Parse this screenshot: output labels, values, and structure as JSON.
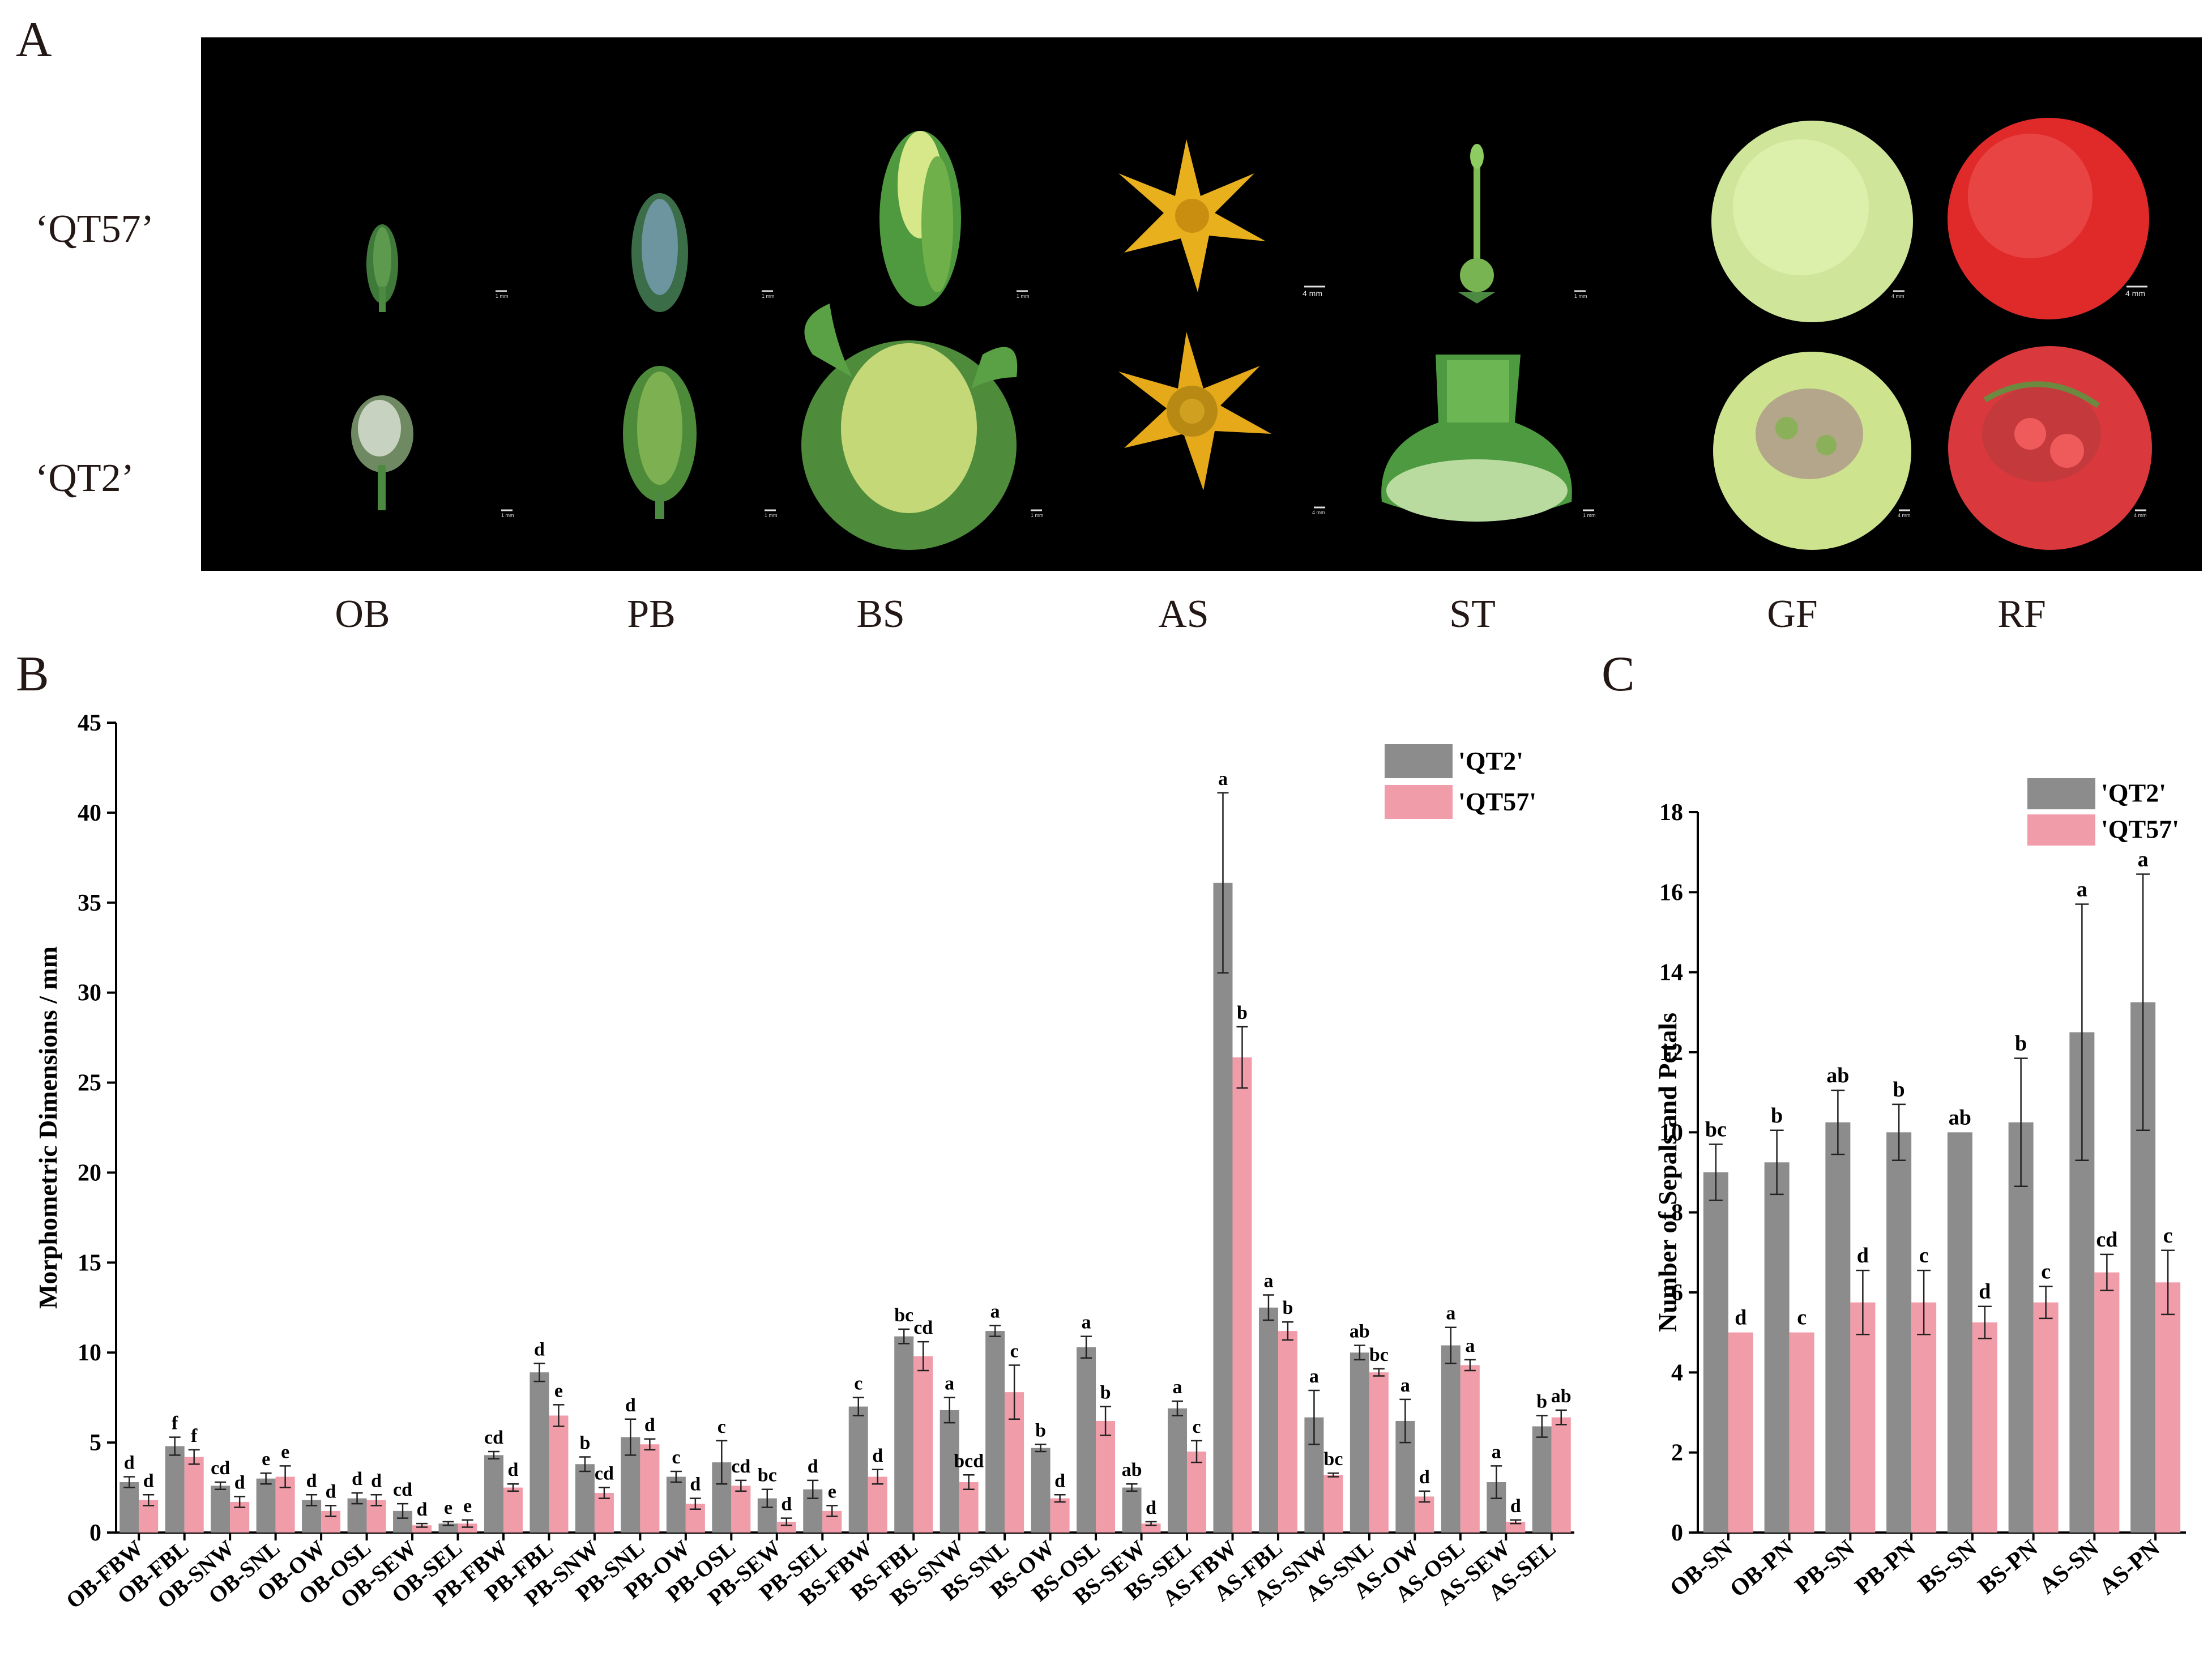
{
  "panels": {
    "a": "A",
    "b": "B",
    "c": "C"
  },
  "photo_panel": {
    "rows": [
      "‘QT57’",
      "‘QT2’"
    ],
    "stages": [
      "OB",
      "PB",
      "BS",
      "AS",
      "ST",
      "GF",
      "RF"
    ],
    "scale_bars": {
      "qt57": [
        "1 mm",
        "1 mm",
        "1 mm",
        "4 mm",
        "1 mm",
        "4 mm",
        "4 mm"
      ],
      "qt2": [
        "1 mm",
        "1 mm",
        "1 mm",
        "4 mm",
        "1 mm",
        "4 mm",
        "4 mm"
      ]
    }
  },
  "colors": {
    "qt2": "#8c8c8c",
    "qt57": "#f19ca9"
  },
  "chart_data": [
    {
      "id": "B",
      "type": "bar",
      "ylabel": "Morphometric Dimensions / mm",
      "ylim": [
        0,
        45
      ],
      "yticks": [
        0,
        5,
        10,
        15,
        20,
        25,
        30,
        35,
        40,
        45
      ],
      "legend": "top-right",
      "categories": [
        "OB-FBW",
        "OB-FBL",
        "OB-SNW",
        "OB-SNL",
        "OB-OW",
        "OB-OSL",
        "OB-SEW",
        "OB-SEL",
        "PB-FBW",
        "PB-FBL",
        "PB-SNW",
        "PB-SNL",
        "PB-OW",
        "PB-OSL",
        "PB-SEW",
        "PB-SEL",
        "BS-FBW",
        "BS-FBL",
        "BS-SNW",
        "BS-SNL",
        "BS-OW",
        "BS-OSL",
        "BS-SEW",
        "BS-SEL",
        "AS-FBW",
        "AS-FBL",
        "AS-SNW",
        "AS-SNL",
        "AS-OW",
        "AS-OSL",
        "AS-SEW",
        "AS-SEL"
      ],
      "series": [
        {
          "name": "'QT2'",
          "values": [
            2.8,
            4.8,
            2.6,
            3.0,
            1.8,
            1.9,
            1.2,
            0.5,
            4.3,
            8.9,
            3.8,
            5.3,
            3.1,
            3.9,
            1.9,
            2.4,
            7.0,
            10.9,
            6.8,
            11.2,
            4.7,
            10.3,
            2.5,
            6.9,
            36.1,
            12.5,
            6.4,
            10.0,
            6.2,
            10.4,
            2.8,
            5.9
          ],
          "errors": [
            0.3,
            0.5,
            0.2,
            0.3,
            0.3,
            0.3,
            0.4,
            0.1,
            0.2,
            0.5,
            0.4,
            1.0,
            0.3,
            1.2,
            0.5,
            0.5,
            0.5,
            0.4,
            0.7,
            0.3,
            0.2,
            0.6,
            0.2,
            0.4,
            5.0,
            0.7,
            1.5,
            0.4,
            1.2,
            1.0,
            0.9,
            0.6
          ],
          "letters": [
            "d",
            "f",
            "cd",
            "e",
            "d",
            "d",
            "cd",
            "e",
            "cd",
            "d",
            "b",
            "d",
            "c",
            "c",
            "bc",
            "d",
            "c",
            "bc",
            "a",
            "a",
            "b",
            "a",
            "ab",
            "a",
            "a",
            "a",
            "a",
            "ab",
            "a",
            "a",
            "a",
            "b"
          ]
        },
        {
          "name": "'QT57'",
          "values": [
            1.8,
            4.2,
            1.7,
            3.1,
            1.2,
            1.8,
            0.4,
            0.5,
            2.5,
            6.5,
            2.2,
            4.9,
            1.6,
            2.6,
            0.6,
            1.2,
            3.1,
            9.8,
            2.8,
            7.8,
            1.9,
            6.2,
            0.5,
            4.5,
            26.4,
            11.2,
            3.2,
            8.9,
            2.0,
            9.3,
            0.6,
            6.4
          ],
          "errors": [
            0.3,
            0.4,
            0.3,
            0.6,
            0.3,
            0.3,
            0.1,
            0.2,
            0.2,
            0.6,
            0.3,
            0.3,
            0.3,
            0.3,
            0.2,
            0.3,
            0.4,
            0.8,
            0.4,
            1.5,
            0.2,
            0.8,
            0.1,
            0.6,
            1.7,
            0.5,
            0.1,
            0.2,
            0.3,
            0.3,
            0.1,
            0.4
          ],
          "letters": [
            "d",
            "f",
            "d",
            "e",
            "d",
            "d",
            "d",
            "e",
            "d",
            "e",
            "cd",
            "d",
            "d",
            "cd",
            "d",
            "e",
            "d",
            "cd",
            "bcd",
            "c",
            "d",
            "b",
            "d",
            "c",
            "b",
            "b",
            "bc",
            "bc",
            "d",
            "a",
            "d",
            "ab"
          ]
        }
      ]
    },
    {
      "id": "C",
      "type": "bar",
      "ylabel": "Number of Sepals and Petals",
      "ylim": [
        0,
        18
      ],
      "yticks": [
        0,
        2,
        4,
        6,
        8,
        10,
        12,
        14,
        16,
        18
      ],
      "legend": "top-right",
      "categories": [
        "OB-SN",
        "OB-PN",
        "PB-SN",
        "PB-PN",
        "BS-SN",
        "BS-PN",
        "AS-SN",
        "AS-PN"
      ],
      "series": [
        {
          "name": "'QT2'",
          "values": [
            9.0,
            9.25,
            10.25,
            10.0,
            10.0,
            10.25,
            12.5,
            13.25
          ],
          "errors": [
            0.7,
            0.8,
            0.8,
            0.7,
            0.0,
            1.6,
            3.2,
            3.2
          ],
          "letters": [
            "bc",
            "b",
            "ab",
            "b",
            "ab",
            "b",
            "a",
            "a"
          ]
        },
        {
          "name": "'QT57'",
          "values": [
            5.0,
            5.0,
            5.75,
            5.75,
            5.25,
            5.75,
            6.5,
            6.25
          ],
          "errors": [
            0.0,
            0.0,
            0.8,
            0.8,
            0.4,
            0.4,
            0.45,
            0.8
          ],
          "letters": [
            "d",
            "c",
            "d",
            "c",
            "d",
            "c",
            "cd",
            "c"
          ]
        }
      ]
    }
  ]
}
